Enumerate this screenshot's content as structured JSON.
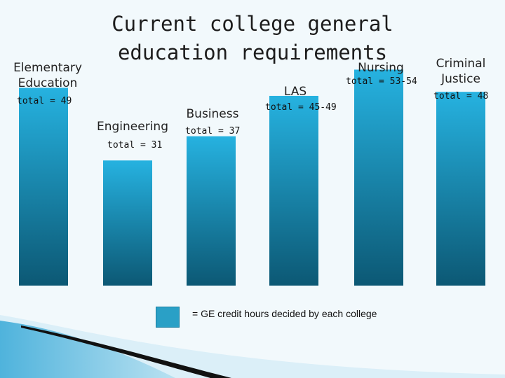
{
  "title": "Current college general education requirements",
  "legend": {
    "text": "= GE credit hours decided by each college",
    "color": "#2aa0c6"
  },
  "colors": {
    "bar_top": "#26b2e0",
    "bar_bottom": "#0c5874",
    "background": "#f2f9fc"
  },
  "chart_data": {
    "type": "bar",
    "title": "Current college general education requirements",
    "categories": [
      "Elementary Education",
      "Engineering",
      "Business",
      "LAS",
      "Nursing",
      "Criminal Justice"
    ],
    "totals": [
      "total = 49",
      "total = 31",
      "total = 37",
      "total = 45-49",
      "total = 53-54",
      "total = 48"
    ],
    "values": [
      49,
      31,
      37,
      47,
      53.5,
      48
    ],
    "series": [
      {
        "name": "GE credit hours decided by each college",
        "values": [
          49,
          31,
          37,
          47,
          53.5,
          48
        ]
      }
    ],
    "xlabel": "",
    "ylabel": "",
    "ylim": [
      0,
      60
    ],
    "grid": false,
    "legend_position": "bottom"
  }
}
